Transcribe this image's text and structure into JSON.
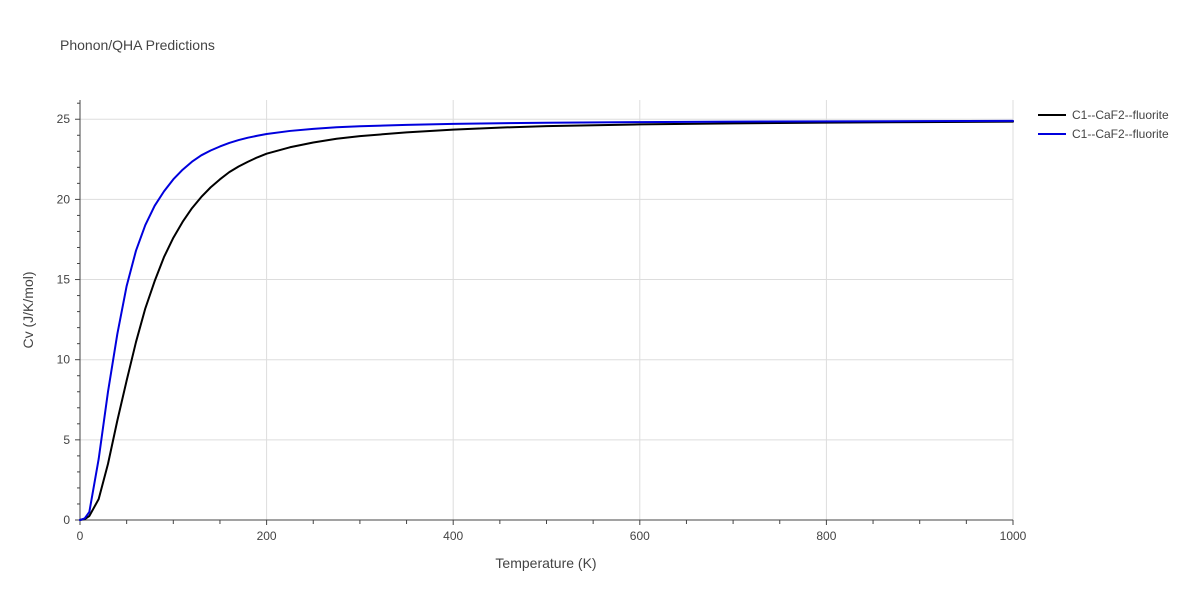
{
  "chart_data": {
    "type": "line",
    "title": "Phonon/QHA Predictions",
    "xlabel": "Temperature (K)",
    "ylabel": "Cv (J/K/mol)",
    "xlim": [
      0,
      1000
    ],
    "ylim": [
      0,
      26.2
    ],
    "xticks": [
      0,
      200,
      400,
      600,
      800,
      1000
    ],
    "yticks": [
      0,
      5,
      10,
      15,
      20,
      25
    ],
    "grid": true,
    "legend_position": "top-right",
    "series": [
      {
        "name": "C1--CaF2--fluorite",
        "color": "#000000",
        "x": [
          0,
          5,
          10,
          20,
          30,
          40,
          50,
          60,
          70,
          80,
          90,
          100,
          110,
          120,
          130,
          140,
          150,
          160,
          170,
          180,
          190,
          200,
          225,
          250,
          275,
          300,
          350,
          400,
          450,
          500,
          600,
          700,
          800,
          900,
          1000
        ],
        "y": [
          0,
          0.05,
          0.25,
          1.3,
          3.5,
          6.2,
          8.7,
          11.1,
          13.2,
          14.9,
          16.4,
          17.6,
          18.6,
          19.45,
          20.15,
          20.75,
          21.25,
          21.7,
          22.05,
          22.35,
          22.62,
          22.85,
          23.25,
          23.55,
          23.78,
          23.95,
          24.18,
          24.35,
          24.48,
          24.57,
          24.68,
          24.74,
          24.79,
          24.82,
          24.85
        ]
      },
      {
        "name": "C1--CaF2--fluorite",
        "color": "#0000dd",
        "x": [
          0,
          5,
          10,
          20,
          30,
          40,
          50,
          60,
          70,
          80,
          90,
          100,
          110,
          120,
          130,
          140,
          150,
          160,
          170,
          180,
          190,
          200,
          225,
          250,
          275,
          300,
          350,
          400,
          450,
          500,
          600,
          700,
          800,
          900,
          1000
        ],
        "y": [
          0,
          0.1,
          0.5,
          3.8,
          8.0,
          11.6,
          14.6,
          16.8,
          18.4,
          19.6,
          20.5,
          21.25,
          21.85,
          22.35,
          22.75,
          23.05,
          23.3,
          23.52,
          23.7,
          23.85,
          23.97,
          24.08,
          24.27,
          24.4,
          24.5,
          24.56,
          24.65,
          24.71,
          24.75,
          24.78,
          24.82,
          24.85,
          24.87,
          24.88,
          24.9
        ]
      }
    ]
  }
}
